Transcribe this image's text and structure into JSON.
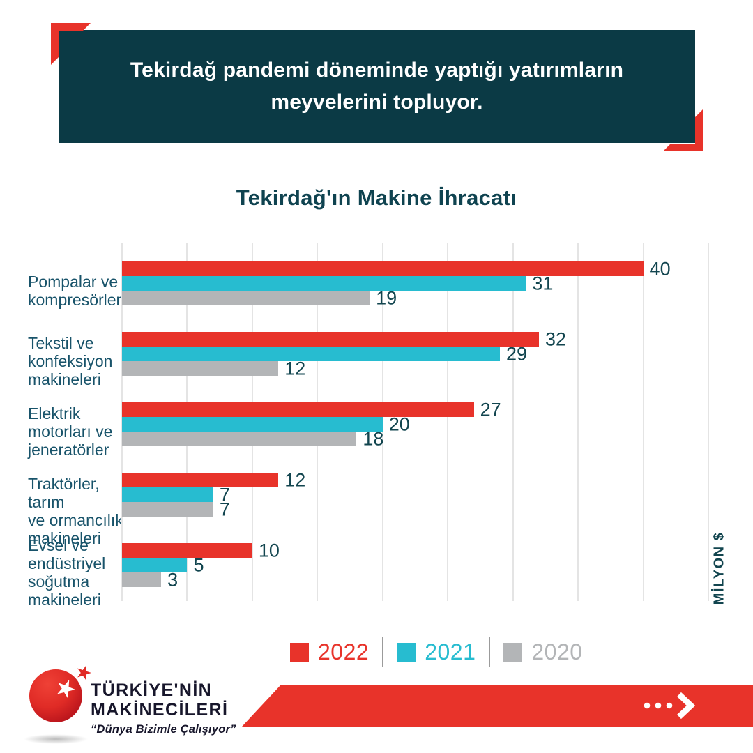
{
  "header": {
    "line1": "Tekirdağ pandemi döneminde yaptığı yatırımların",
    "line2": "meyvelerini topluyor."
  },
  "chart_data": {
    "type": "bar",
    "orientation": "horizontal",
    "title": "Tekirdağ'ın Makine İhracatı",
    "unit_label": "MİLYON $",
    "categories": [
      "Pompalar ve kompresörler",
      "Tekstil ve konfeksiyon makineleri",
      "Elektrik motorları ve jeneratörler",
      "Traktörler, tarım ve ormancılık makineleri",
      "Evsel ve endüstriyel soğutma makineleri"
    ],
    "category_lines": [
      [
        "Pompalar ve",
        "kompresörler"
      ],
      [
        "Tekstil ve",
        "konfeksiyon",
        "makineleri"
      ],
      [
        "Elektrik",
        "motorları ve",
        "jeneratörler"
      ],
      [
        "Traktörler, tarım",
        "ve ormancılık",
        "makineleri"
      ],
      [
        "Evsel ve",
        "endüstriyel",
        "soğutma",
        "makineleri"
      ]
    ],
    "series": [
      {
        "name": "2022",
        "color": "#e8332a",
        "values": [
          40,
          32,
          27,
          12,
          10
        ]
      },
      {
        "name": "2021",
        "color": "#27bcd0",
        "values": [
          31,
          29,
          20,
          7,
          5
        ]
      },
      {
        "name": "2020",
        "color": "#b3b5b7",
        "values": [
          19,
          12,
          18,
          7,
          3
        ]
      }
    ],
    "x_axis": {
      "min": 0,
      "max": 45,
      "gridline_step": 5,
      "grid": true
    },
    "legend_position": "bottom",
    "value_labels": true
  },
  "legend": {
    "items": [
      {
        "label": "2022",
        "color": "#e8332a"
      },
      {
        "label": "2021",
        "color": "#27bcd0"
      },
      {
        "label": "2020",
        "color": "#b3b5b7"
      }
    ]
  },
  "footer": {
    "logo_title_line1": "TÜRKİYE'NİN",
    "logo_title_line2": "MAKİNECİLERİ",
    "logo_tagline": "“Dünya Bizimle Çalışıyor”"
  },
  "icons": {
    "logo": "red-sphere-with-stars",
    "footer_arrow": "three-dots-chevron-right"
  },
  "colors": {
    "banner_teal": "#0b3a45",
    "accent_red": "#e8332a",
    "cyan": "#27bcd0",
    "gray": "#b3b5b7",
    "text_teal": "#12454f",
    "category_teal": "#18536a",
    "gridline": "#e4e4e4"
  }
}
